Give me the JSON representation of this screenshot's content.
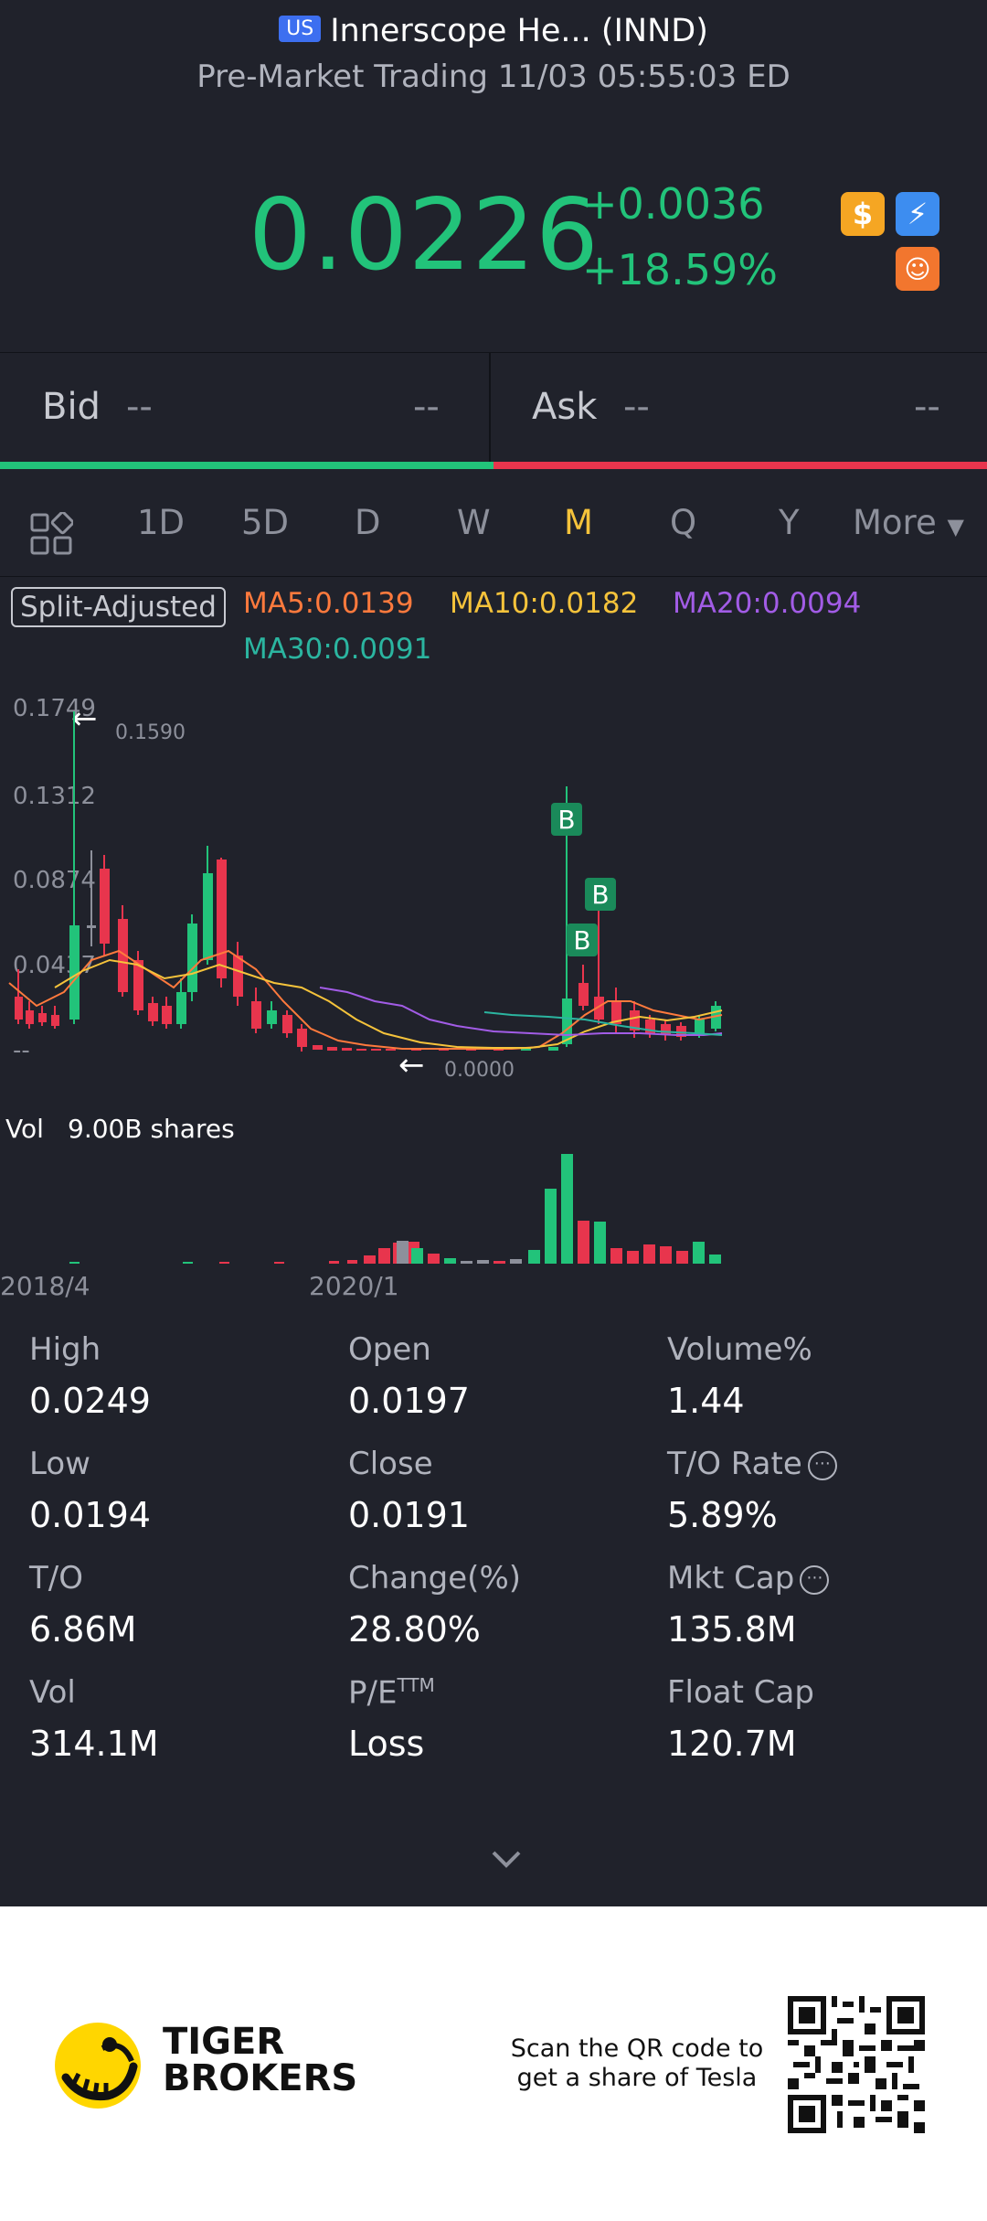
{
  "header": {
    "market_badge": "US",
    "title": "Innerscope He... (INND)",
    "subtitle": "Pre-Market Trading 11/03 05:55:03 ED",
    "price": "0.0226",
    "change_abs": "+0.0036",
    "change_pct": "+18.59%",
    "icons": [
      "dollar-icon",
      "lightning-icon",
      "brain-icon"
    ]
  },
  "bidask": {
    "bid_label": "Bid",
    "bid_price": "--",
    "bid_size": "--",
    "ask_label": "Ask",
    "ask_price": "--",
    "ask_size": "--"
  },
  "tabs": {
    "items": [
      "1D",
      "5D",
      "D",
      "W",
      "M",
      "Q",
      "Y",
      "More"
    ],
    "active": "M"
  },
  "indicators": {
    "split_label": "Split-Adjusted",
    "ma5": "MA5:0.0139",
    "ma10": "MA10:0.0182",
    "ma20": "MA20:0.0094",
    "ma30": "MA30:0.0091"
  },
  "chart_data": {
    "type": "candlestick",
    "y_tick_labels": [
      "0.1749",
      "0.1312",
      "0.0874",
      "0.0437",
      "--"
    ],
    "x_tick_labels": [
      "2018/4",
      "2020/1"
    ],
    "high_marker": "0.1590",
    "low_marker": "0.0000",
    "volume_label": "Vol",
    "volume_value": "9.00B shares",
    "trade_markers": [
      "B",
      "B",
      "B"
    ],
    "colors": {
      "up": "#22c37a",
      "down": "#e8354d",
      "ma5": "#ff7a3d",
      "ma10": "#f5c33b",
      "ma20": "#a25ce6",
      "ma30": "#2bb5a0"
    }
  },
  "stats": [
    {
      "label": "High",
      "value": "0.0249"
    },
    {
      "label": "Open",
      "value": "0.0197"
    },
    {
      "label": "Volume%",
      "value": "1.44"
    },
    {
      "label": "Low",
      "value": "0.0194"
    },
    {
      "label": "Close",
      "value": "0.0191"
    },
    {
      "label": "T/O Rate",
      "value": "5.89%"
    },
    {
      "label": "T/O",
      "value": "6.86M"
    },
    {
      "label": "Change(%)",
      "value": "28.80%"
    },
    {
      "label": "Mkt Cap",
      "value": "135.8M"
    },
    {
      "label": "Vol",
      "value": "314.1M"
    },
    {
      "label": "P/E",
      "label_sup": "TTM",
      "value": "Loss"
    },
    {
      "label": "Float Cap",
      "value": "120.7M"
    }
  ],
  "footer": {
    "brand_line1": "TIGER",
    "brand_line2": "BROKERS",
    "promo_line1": "Scan the QR code to",
    "promo_line2": "get a share of Tesla"
  }
}
